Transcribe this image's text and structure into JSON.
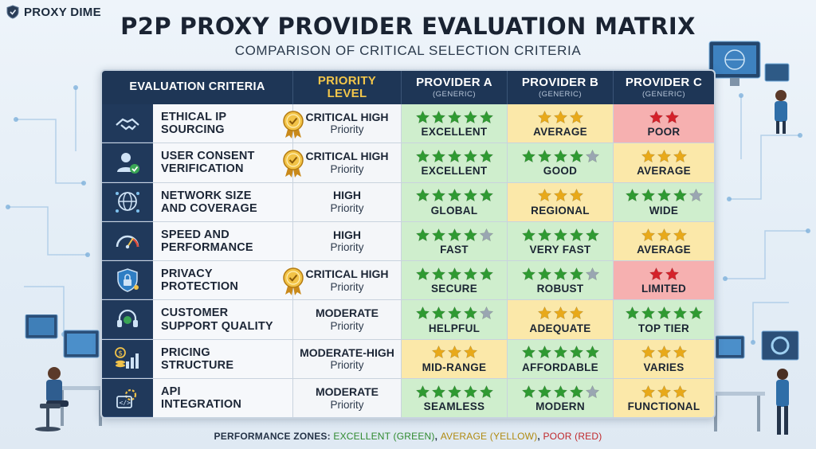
{
  "logo": {
    "text": "PROXY DIME",
    "icon": "shield-icon"
  },
  "title": "P2P PROXY PROVIDER EVALUATION MATRIX",
  "subtitle": "COMPARISON OF CRITICAL SELECTION CRITERIA",
  "header": {
    "criteria": "EVALUATION CRITERIA",
    "priority_line1": "PRIORITY",
    "priority_line2": "LEVEL",
    "providers": [
      {
        "name": "PROVIDER A",
        "sub": "(GENERIC)"
      },
      {
        "name": "PROVIDER B",
        "sub": "(GENERIC)"
      },
      {
        "name": "PROVIDER C",
        "sub": "(GENERIC)"
      }
    ]
  },
  "rows": [
    {
      "icon": "handshake-icon",
      "label_line1": "ETHICAL IP",
      "label_line2": "SOURCING",
      "medal": true,
      "priority_line1": "CRITICAL HIGH",
      "priority_line2": "Priority",
      "ratings": [
        {
          "stars": 5,
          "word": "EXCELLENT",
          "zone": "green"
        },
        {
          "stars": 3,
          "word": "AVERAGE",
          "zone": "yellow"
        },
        {
          "stars": 2,
          "word": "POOR",
          "zone": "red"
        }
      ]
    },
    {
      "icon": "user-check-icon",
      "label_line1": "USER CONSENT",
      "label_line2": "VERIFICATION",
      "medal": true,
      "priority_line1": "CRITICAL HIGH",
      "priority_line2": "Priority",
      "ratings": [
        {
          "stars": 5,
          "word": "EXCELLENT",
          "zone": "green"
        },
        {
          "stars": 4,
          "word": "GOOD",
          "zone": "green"
        },
        {
          "stars": 3,
          "word": "AVERAGE",
          "zone": "yellow"
        }
      ]
    },
    {
      "icon": "globe-network-icon",
      "label_line1": "NETWORK SIZE",
      "label_line2": "AND COVERAGE",
      "medal": false,
      "priority_line1": "HIGH",
      "priority_line2": "Priority",
      "ratings": [
        {
          "stars": 5,
          "word": "GLOBAL",
          "zone": "green"
        },
        {
          "stars": 3,
          "word": "REGIONAL",
          "zone": "yellow"
        },
        {
          "stars": 4,
          "word": "WIDE",
          "zone": "green"
        }
      ]
    },
    {
      "icon": "speedometer-icon",
      "label_line1": "SPEED AND",
      "label_line2": "PERFORMANCE",
      "medal": false,
      "priority_line1": "HIGH",
      "priority_line2": "Priority",
      "ratings": [
        {
          "stars": 4,
          "word": "FAST",
          "zone": "green"
        },
        {
          "stars": 5,
          "word": "VERY FAST",
          "zone": "green"
        },
        {
          "stars": 3,
          "word": "AVERAGE",
          "zone": "yellow"
        }
      ]
    },
    {
      "icon": "shield-lock-icon",
      "label_line1": "PRIVACY",
      "label_line2": "PROTECTION",
      "medal": true,
      "priority_line1": "CRITICAL HIGH",
      "priority_line2": "Priority",
      "ratings": [
        {
          "stars": 5,
          "word": "SECURE",
          "zone": "green"
        },
        {
          "stars": 4,
          "word": "ROBUST",
          "zone": "green"
        },
        {
          "stars": 2,
          "word": "LIMITED",
          "zone": "red"
        }
      ]
    },
    {
      "icon": "headset-icon",
      "label_line1": "CUSTOMER",
      "label_line2": "SUPPORT QUALITY",
      "medal": false,
      "priority_line1": "MODERATE",
      "priority_line2": "Priority",
      "ratings": [
        {
          "stars": 4,
          "word": "HELPFUL",
          "zone": "green"
        },
        {
          "stars": 3,
          "word": "ADEQUATE",
          "zone": "yellow"
        },
        {
          "stars": 5,
          "word": "TOP TIER",
          "zone": "green"
        }
      ]
    },
    {
      "icon": "pricing-chart-icon",
      "label_line1": "PRICING",
      "label_line2": "STRUCTURE",
      "medal": false,
      "priority_line1": "MODERATE-HIGH",
      "priority_line2": "Priority",
      "ratings": [
        {
          "stars": 3,
          "word": "MID-RANGE",
          "zone": "yellow"
        },
        {
          "stars": 5,
          "word": "AFFORDABLE",
          "zone": "green"
        },
        {
          "stars": 3,
          "word": "VARIES",
          "zone": "yellow"
        }
      ]
    },
    {
      "icon": "api-gear-icon",
      "label_line1": "API",
      "label_line2": "INTEGRATION",
      "medal": false,
      "priority_line1": "MODERATE",
      "priority_line2": "Priority",
      "ratings": [
        {
          "stars": 5,
          "word": "SEAMLESS",
          "zone": "green"
        },
        {
          "stars": 4,
          "word": "MODERN",
          "zone": "green"
        },
        {
          "stars": 3,
          "word": "FUNCTIONAL",
          "zone": "yellow"
        }
      ]
    }
  ],
  "footer": {
    "lead": "PERFORMANCE ZONES:",
    "green": "EXCELLENT (GREEN)",
    "yellow": "AVERAGE (YELLOW)",
    "red": "POOR (RED)",
    "sep": ","
  },
  "colors": {
    "header_bg": "#1e3656",
    "green_zone": "#cfeecd",
    "yellow_zone": "#fbe8a9",
    "red_zone": "#f6b0b0",
    "star_green": "#2f9a32",
    "star_gold": "#e8a91a",
    "star_red": "#d4212a"
  }
}
